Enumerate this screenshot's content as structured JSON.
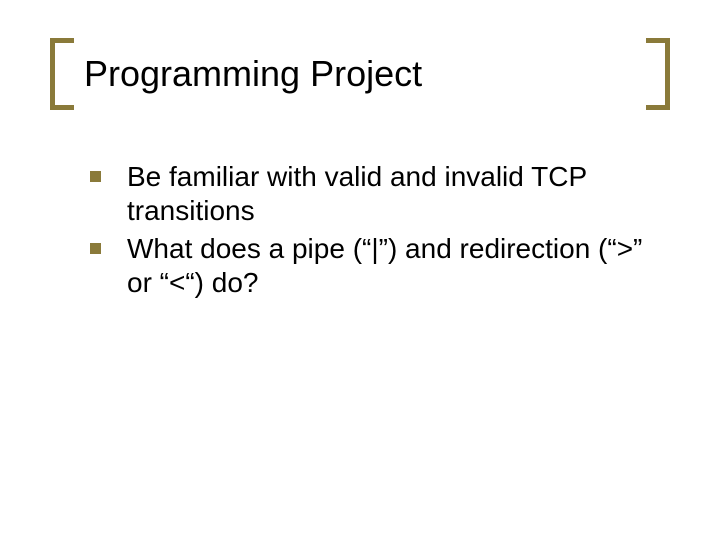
{
  "slide": {
    "title": "Programming Project",
    "bullets": [
      "Be familiar with valid and invalid TCP transitions",
      "What does a pipe (“|”) and redirection (“>” or “<“) do?"
    ]
  },
  "style": {
    "bracket_color": "#8a7a3a",
    "bullet_color": "#8a7a3a",
    "title_color": "#000000",
    "body_color": "#000000",
    "background_color": "#ffffff",
    "title_fontsize": 36,
    "body_fontsize": 28,
    "bullet_size": 11,
    "bracket_stroke": 5,
    "bracket_width": 24,
    "bracket_height": 72
  }
}
